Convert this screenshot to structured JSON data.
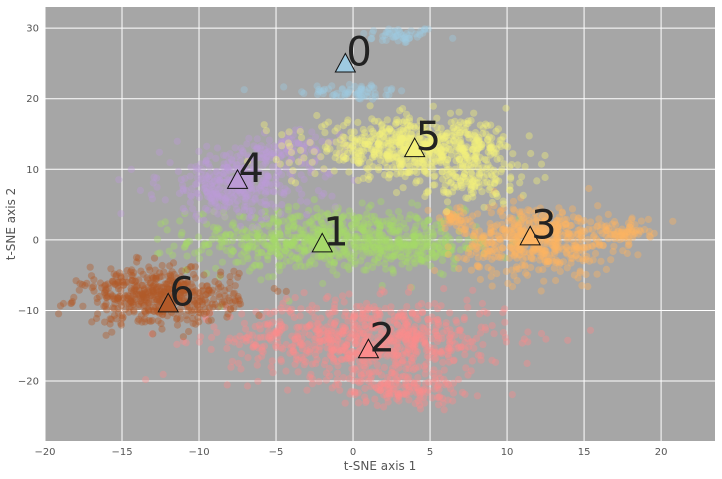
{
  "chart_data": {
    "type": "scatter",
    "xlabel": "t-SNE axis 1",
    "ylabel": "t-SNE axis 2",
    "xlim": [
      -20,
      23.5
    ],
    "ylim": [
      -28.5,
      33
    ],
    "xticks": [
      -20,
      -15,
      -10,
      -5,
      0,
      5,
      10,
      15,
      20
    ],
    "yticks": [
      -20,
      -10,
      0,
      10,
      20,
      30
    ],
    "grid": true,
    "background": "#a6a6a6",
    "clusters": [
      {
        "label": "0",
        "centroid": [
          -0.5,
          25
        ],
        "color": "#9ecae1",
        "blobs": [
          {
            "c": [
              3,
              29
            ],
            "r": [
              2.5,
              1.2
            ],
            "n": 45
          },
          {
            "c": [
              0,
              21
            ],
            "r": [
              3.5,
              1.2
            ],
            "n": 60
          }
        ]
      },
      {
        "label": "1",
        "centroid": [
          -2,
          -0.5
        ],
        "color": "#a6d96a",
        "blobs": [
          {
            "c": [
              -2,
              0
            ],
            "r": [
              8.5,
              4.5
            ],
            "n": 650
          },
          {
            "c": [
              4,
              -1
            ],
            "r": [
              4,
              3
            ],
            "n": 150
          }
        ]
      },
      {
        "label": "2",
        "centroid": [
          1,
          -15.5
        ],
        "color": "#fb8c8c",
        "blobs": [
          {
            "c": [
              1,
              -14
            ],
            "r": [
              9,
              5.5
            ],
            "n": 750
          },
          {
            "c": [
              3,
              -21
            ],
            "r": [
              4,
              2.5
            ],
            "n": 150
          }
        ]
      },
      {
        "label": "3",
        "centroid": [
          11.5,
          0.5
        ],
        "color": "#fdb462",
        "blobs": [
          {
            "c": [
              12,
              0
            ],
            "r": [
              5,
              5
            ],
            "n": 500
          },
          {
            "c": [
              17.5,
              1
            ],
            "r": [
              1.8,
              1.5
            ],
            "n": 60
          },
          {
            "c": [
              6.5,
              3
            ],
            "r": [
              1.5,
              1.5
            ],
            "n": 40
          }
        ]
      },
      {
        "label": "4",
        "centroid": [
          -7.5,
          8.5
        ],
        "color": "#bc9bd6",
        "blobs": [
          {
            "c": [
              -7.5,
              8
            ],
            "r": [
              5,
              5
            ],
            "n": 350
          },
          {
            "c": [
              -4,
              13
            ],
            "r": [
              3,
              2
            ],
            "n": 80
          }
        ]
      },
      {
        "label": "5",
        "centroid": [
          4,
          13
        ],
        "color": "#f3f07a",
        "blobs": [
          {
            "c": [
              4,
              13
            ],
            "r": [
              6.5,
              4
            ],
            "n": 650
          },
          {
            "c": [
              8,
              8
            ],
            "r": [
              3,
              3
            ],
            "n": 100
          }
        ]
      },
      {
        "label": "6",
        "centroid": [
          -12,
          -9
        ],
        "color": "#b15928",
        "blobs": [
          {
            "c": [
              -12.5,
              -8
            ],
            "r": [
              5,
              4
            ],
            "n": 500
          }
        ]
      }
    ]
  }
}
